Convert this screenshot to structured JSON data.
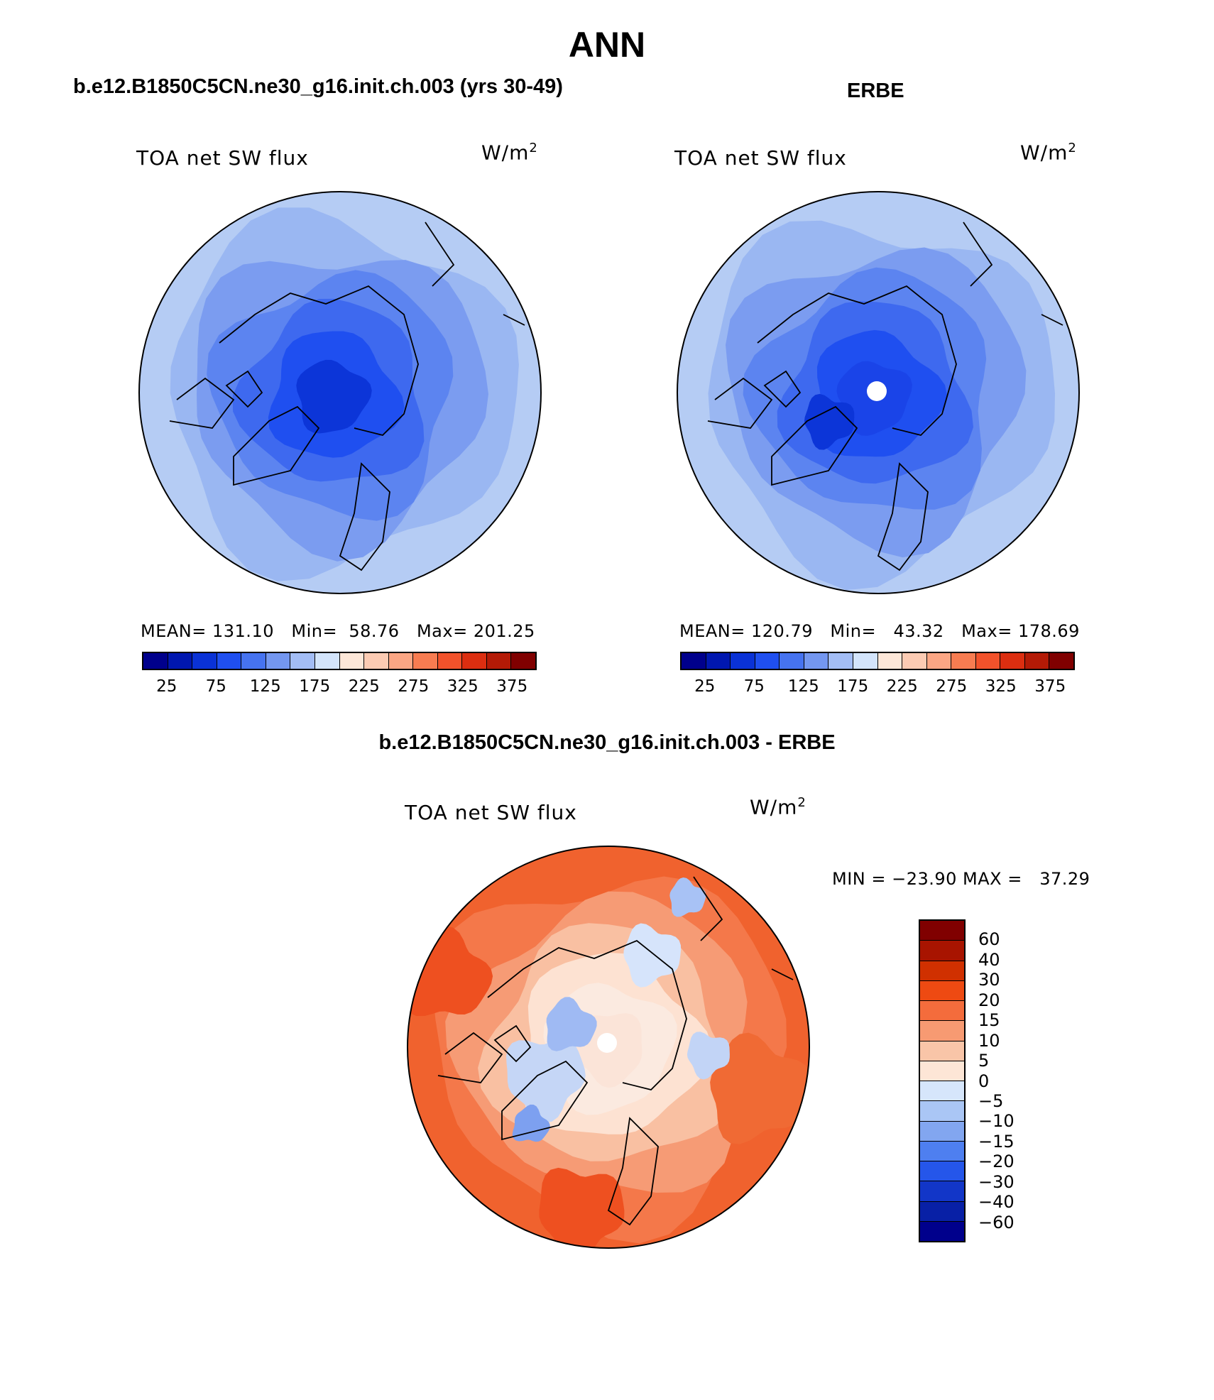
{
  "title": "ANN",
  "panels": [
    {
      "heading": "b.e12.B1850C5CN.ne30_g16.init.ch.003 (yrs 30-49)",
      "field": "TOA net SW flux",
      "units_base": "W/m",
      "units_exp": "2",
      "stats": {
        "mean_label": "MEAN=",
        "mean": "131.10",
        "min_label": "Min=",
        "min": "58.76",
        "max_label": "Max=",
        "max": "201.25"
      }
    },
    {
      "heading": "ERBE",
      "field": "TOA net SW flux",
      "units_base": "W/m",
      "units_exp": "2",
      "stats": {
        "mean_label": "MEAN=",
        "mean": "120.79",
        "min_label": "Min=",
        "min": "43.32",
        "max_label": "Max=",
        "max": "178.69"
      }
    },
    {
      "heading": "b.e12.B1850C5CN.ne30_g16.init.ch.003 - ERBE",
      "field": "TOA net SW flux",
      "units_base": "W/m",
      "units_exp": "2",
      "stats_line": "MIN = −23.90 MAX =   37.29"
    }
  ],
  "colorbar_abs": {
    "colors": [
      "#00008c",
      "#0017b0",
      "#0a32d6",
      "#1f4ff0",
      "#4673f0",
      "#7497f0",
      "#a3bdf5",
      "#d3e4fb",
      "#fde7d8",
      "#fccbb3",
      "#fba684",
      "#f77c51",
      "#f2522b",
      "#dc2e10",
      "#b41a06",
      "#800000"
    ],
    "labels": [
      "25",
      "75",
      "125",
      "175",
      "225",
      "275",
      "325",
      "375"
    ]
  },
  "colorbar_diff": {
    "colors": [
      "#800000",
      "#a81400",
      "#d03000",
      "#ee4a12",
      "#f46c3c",
      "#f79a72",
      "#f9c5a8",
      "#fde6d6",
      "#d6e6fb",
      "#aac6f5",
      "#82a6f0",
      "#4e7ff0",
      "#2556ea",
      "#1236c8",
      "#0820a6",
      "#00008c"
    ],
    "labels": [
      "60",
      "40",
      "30",
      "20",
      "15",
      "10",
      "5",
      "0",
      "−5",
      "−10",
      "−15",
      "−20",
      "−30",
      "−40",
      "−60"
    ]
  },
  "maps": [
    {
      "name": "model",
      "rings": [
        "#b5ccf4",
        "#9ab7f2",
        "#7b9cf0",
        "#5c84f0",
        "#3e69ef",
        "#1f4ff0",
        "#0c35d8"
      ]
    },
    {
      "name": "obs",
      "rings": [
        "#b5ccf4",
        "#9ab7f2",
        "#7b9cf0",
        "#5c84f0",
        "#3e69ef",
        "#1f4ff0",
        "#1a44e8"
      ]
    },
    {
      "name": "diff",
      "rings": [
        "#f0622e",
        "#f4784a",
        "#f69b75",
        "#f9c0a2",
        "#fde2d2",
        "#fbeae0",
        "#fbe4d8"
      ]
    }
  ]
}
